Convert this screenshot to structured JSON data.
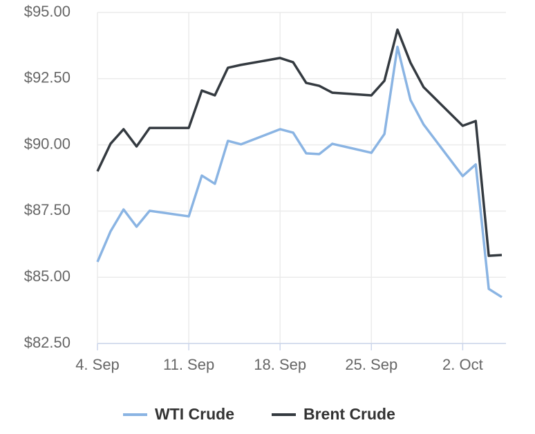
{
  "chart_data": {
    "type": "line",
    "x": [
      "09-04",
      "09-05",
      "09-06",
      "09-07",
      "09-08",
      "09-11",
      "09-12",
      "09-13",
      "09-14",
      "09-15",
      "09-18",
      "09-19",
      "09-20",
      "09-21",
      "09-22",
      "09-25",
      "09-26",
      "09-27",
      "09-28",
      "09-29",
      "10-02",
      "10-03",
      "10-04",
      "10-05"
    ],
    "xticks": [
      {
        "value": "09-04",
        "label": "4. Sep"
      },
      {
        "value": "09-11",
        "label": "11. Sep"
      },
      {
        "value": "09-18",
        "label": "18. Sep"
      },
      {
        "value": "09-25",
        "label": "25. Sep"
      },
      {
        "value": "10-02",
        "label": "2. Oct"
      }
    ],
    "xlim": [
      "09-04",
      "10-05"
    ],
    "ylim": [
      82.5,
      95
    ],
    "yticks": [
      {
        "value": 82.5,
        "label": "$82.50"
      },
      {
        "value": 85,
        "label": "$85.00"
      },
      {
        "value": 87.5,
        "label": "$87.50"
      },
      {
        "value": 90,
        "label": "$90.00"
      },
      {
        "value": 92.5,
        "label": "$92.50"
      },
      {
        "value": 95,
        "label": "$95.00"
      }
    ],
    "grid": true,
    "legend": "bottom",
    "series": [
      {
        "name": "WTI Crude",
        "color": "#8ab4e3",
        "values": [
          85.58,
          86.73,
          87.56,
          86.91,
          87.51,
          87.3,
          88.84,
          88.53,
          90.15,
          90.02,
          90.59,
          90.46,
          89.68,
          89.65,
          90.04,
          89.7,
          90.41,
          93.7,
          91.69,
          90.77,
          88.82,
          89.26,
          84.56,
          84.25
        ]
      },
      {
        "name": "Brent Crude",
        "color": "#343a40",
        "values": [
          89.0,
          90.04,
          90.59,
          89.94,
          90.64,
          90.64,
          92.05,
          91.87,
          92.91,
          93.02,
          93.28,
          93.12,
          92.34,
          92.23,
          91.97,
          91.87,
          92.42,
          94.35,
          93.1,
          92.18,
          90.72,
          90.9,
          85.81,
          85.84
        ]
      }
    ]
  }
}
